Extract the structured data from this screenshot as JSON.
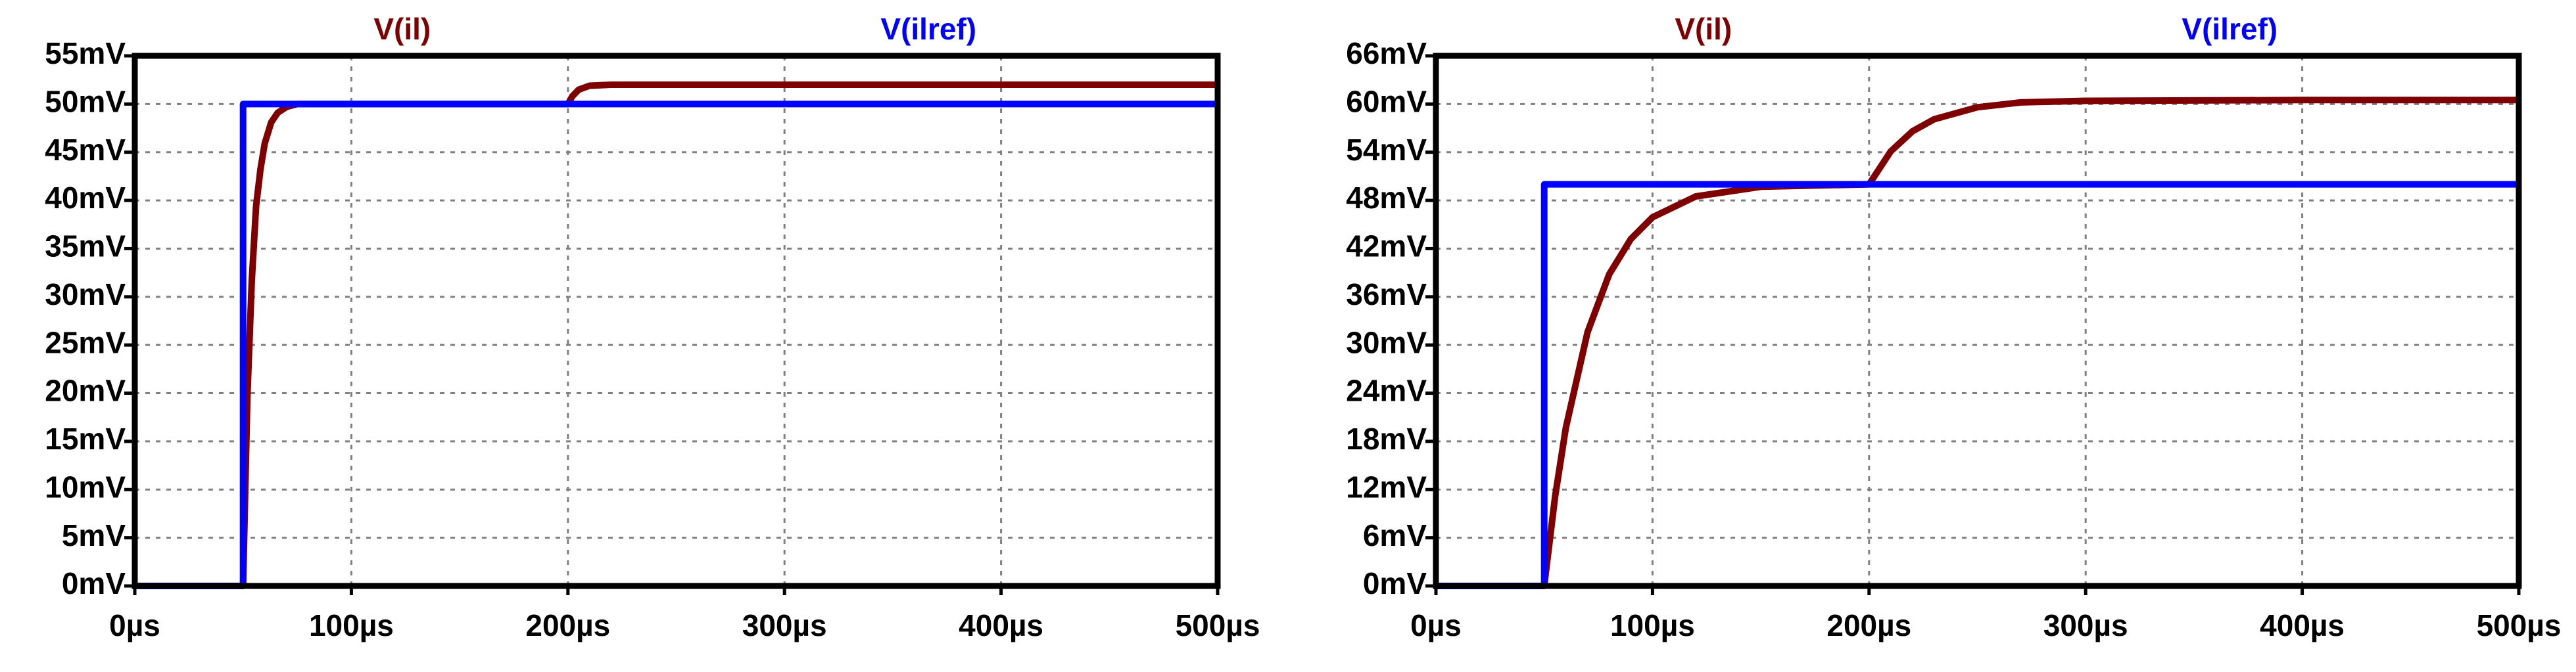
{
  "chart_data": [
    {
      "type": "line",
      "x": [
        0,
        50,
        50,
        52,
        54,
        56,
        58,
        60,
        63,
        66,
        70,
        75,
        80,
        100,
        150,
        200,
        202,
        205,
        210,
        220,
        300,
        400,
        500
      ],
      "series": [
        {
          "name": "V(il)",
          "color": "#7f0000",
          "values": [
            0,
            0,
            0,
            19.7,
            31.6,
            39.4,
            43.2,
            45.9,
            48.1,
            49.1,
            49.7,
            50,
            50,
            50,
            50,
            50,
            50.8,
            51.5,
            51.9,
            52,
            52,
            52,
            52
          ]
        },
        {
          "name": "V(ilref)",
          "color": "#0000ff",
          "values": [
            0,
            0,
            50,
            50,
            50,
            50,
            50,
            50,
            50,
            50,
            50,
            50,
            50,
            50,
            50,
            50,
            50,
            50,
            50,
            50,
            50,
            50,
            50
          ]
        }
      ],
      "xlim": [
        0,
        500
      ],
      "xticks": [
        {
          "value": 0,
          "label": "0µs"
        },
        {
          "value": 100,
          "label": "100µs"
        },
        {
          "value": 200,
          "label": "200µs"
        },
        {
          "value": 300,
          "label": "300µs"
        },
        {
          "value": 400,
          "label": "400µs"
        },
        {
          "value": 500,
          "label": "500µs"
        }
      ],
      "ylim": [
        0,
        55
      ],
      "yticks": [
        {
          "value": 0,
          "label": "0mV"
        },
        {
          "value": 5,
          "label": "5mV"
        },
        {
          "value": 10,
          "label": "10mV"
        },
        {
          "value": 15,
          "label": "15mV"
        },
        {
          "value": 20,
          "label": "20mV"
        },
        {
          "value": 25,
          "label": "25mV"
        },
        {
          "value": 30,
          "label": "30mV"
        },
        {
          "value": 35,
          "label": "35mV"
        },
        {
          "value": 40,
          "label": "40mV"
        },
        {
          "value": 45,
          "label": "45mV"
        },
        {
          "value": 50,
          "label": "50mV"
        },
        {
          "value": 55,
          "label": "55mV"
        }
      ],
      "grid": true
    },
    {
      "type": "line",
      "x": [
        0,
        50,
        50,
        55,
        60,
        70,
        80,
        90,
        100,
        120,
        150,
        200,
        210,
        220,
        230,
        250,
        270,
        300,
        400,
        500
      ],
      "series": [
        {
          "name": "V(il)",
          "color": "#7f0000",
          "values": [
            0,
            0,
            0,
            11.1,
            19.7,
            31.6,
            38.8,
            43.2,
            45.9,
            48.5,
            49.7,
            50,
            54.1,
            56.6,
            58.1,
            59.6,
            60.2,
            60.4,
            60.5,
            60.5
          ]
        },
        {
          "name": "V(ilref)",
          "color": "#0000ff",
          "values": [
            0,
            0,
            50,
            50,
            50,
            50,
            50,
            50,
            50,
            50,
            50,
            50,
            50,
            50,
            50,
            50,
            50,
            50,
            50,
            50
          ]
        }
      ],
      "xlim": [
        0,
        500
      ],
      "xticks": [
        {
          "value": 0,
          "label": "0µs"
        },
        {
          "value": 100,
          "label": "100µs"
        },
        {
          "value": 200,
          "label": "200µs"
        },
        {
          "value": 300,
          "label": "300µs"
        },
        {
          "value": 400,
          "label": "400µs"
        },
        {
          "value": 500,
          "label": "500µs"
        }
      ],
      "ylim": [
        0,
        66
      ],
      "yticks": [
        {
          "value": 0,
          "label": "0mV"
        },
        {
          "value": 6,
          "label": "6mV"
        },
        {
          "value": 12,
          "label": "12mV"
        },
        {
          "value": 18,
          "label": "18mV"
        },
        {
          "value": 24,
          "label": "24mV"
        },
        {
          "value": 30,
          "label": "30mV"
        },
        {
          "value": 36,
          "label": "36mV"
        },
        {
          "value": 42,
          "label": "42mV"
        },
        {
          "value": 48,
          "label": "48mV"
        },
        {
          "value": 54,
          "label": "54mV"
        },
        {
          "value": 60,
          "label": "60mV"
        },
        {
          "value": 66,
          "label": "66mV"
        }
      ],
      "grid": true
    }
  ]
}
